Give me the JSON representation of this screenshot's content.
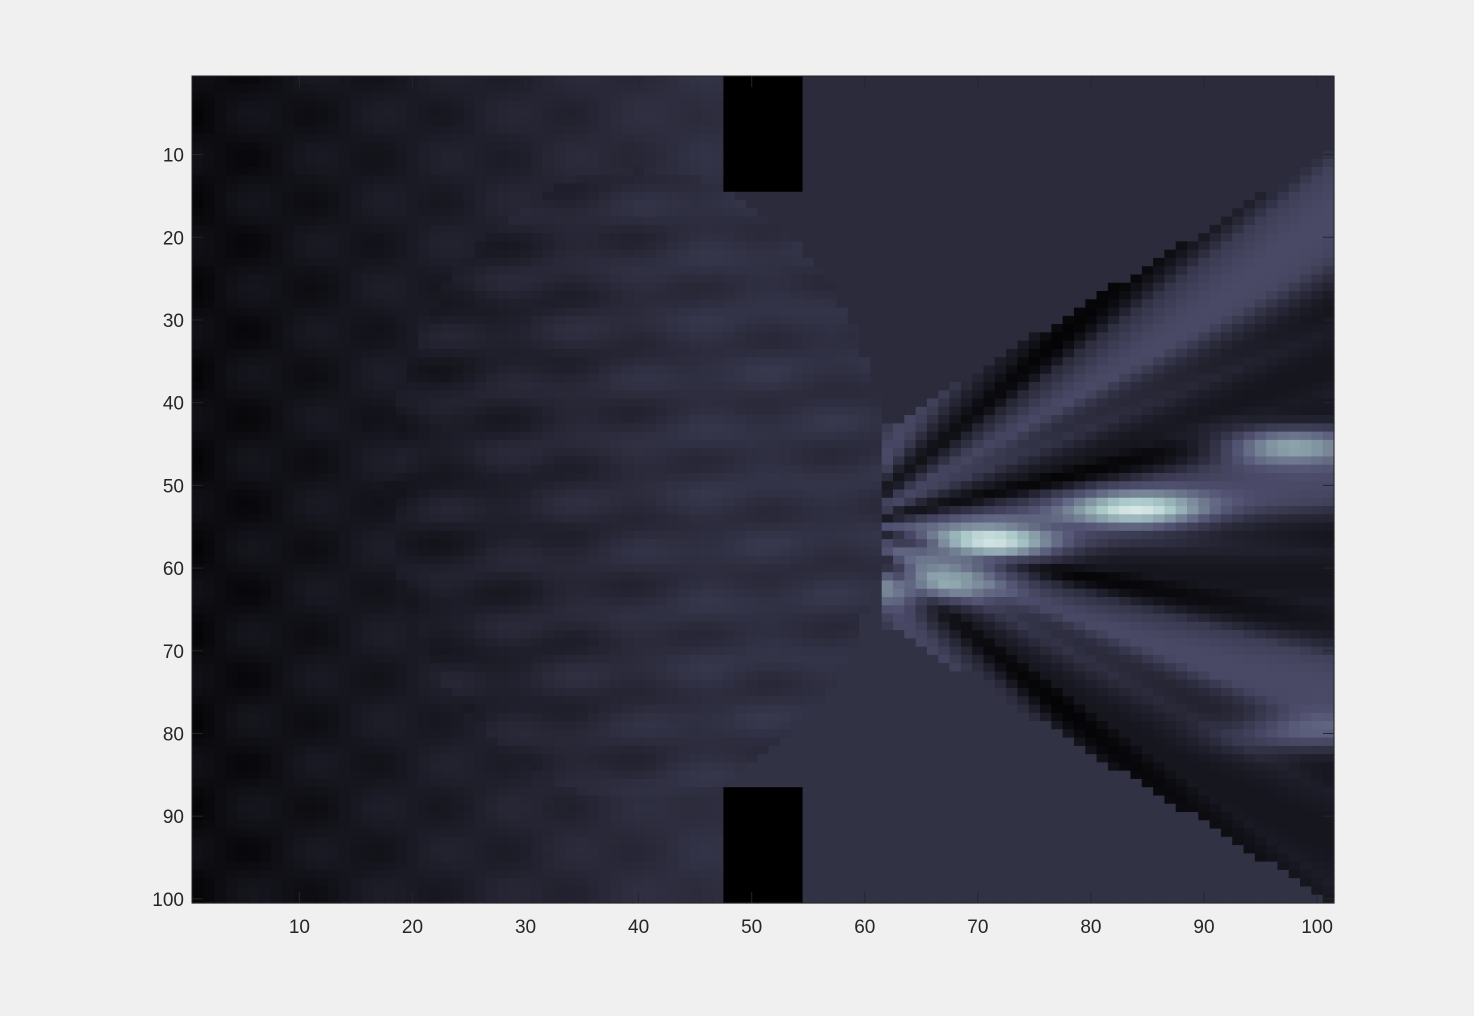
{
  "chart_data": {
    "type": "heatmap",
    "colormap": "bone",
    "title": "",
    "xlabel": "",
    "ylabel": "",
    "xlim": [
      0.5,
      101.5
    ],
    "ylim": [
      0.5,
      100.5
    ],
    "y_direction": "reverse",
    "grid": false,
    "colorbar": false,
    "xticks": [
      10,
      20,
      30,
      40,
      50,
      60,
      70,
      80,
      90,
      100
    ],
    "yticks": [
      10,
      20,
      30,
      40,
      50,
      60,
      70,
      80,
      90,
      100
    ],
    "xtick_labels": [
      "10",
      "20",
      "30",
      "40",
      "50",
      "60",
      "70",
      "80",
      "90",
      "100"
    ],
    "ytick_labels": [
      "10",
      "20",
      "30",
      "40",
      "50",
      "60",
      "70",
      "80",
      "90",
      "100"
    ],
    "field_description": "wave intensity; lens-shaped region centered near column 42 with aperture edge near column 62; diffraction fringes fan out to the right",
    "barriers": [
      {
        "columns": [
          48,
          54
        ],
        "rows": [
          1,
          14
        ],
        "value": 0
      },
      {
        "columns": [
          48,
          54
        ],
        "rows": [
          87,
          100
        ],
        "value": 0
      }
    ],
    "bright_spots": [
      {
        "column": 71,
        "row": 57,
        "value": 1.0
      },
      {
        "column": 84,
        "row": 53,
        "value": 0.85
      },
      {
        "column": 97,
        "row": 45,
        "value": 0.75
      },
      {
        "column": 66,
        "row": 62,
        "value": 0.7
      },
      {
        "column": 98,
        "row": 80,
        "value": 0.55
      }
    ],
    "background_levels": {
      "upper_right_region": 0.2,
      "lower_right_region": 0.23,
      "lens_region": 0.22,
      "left_edge": 0.05
    }
  }
}
